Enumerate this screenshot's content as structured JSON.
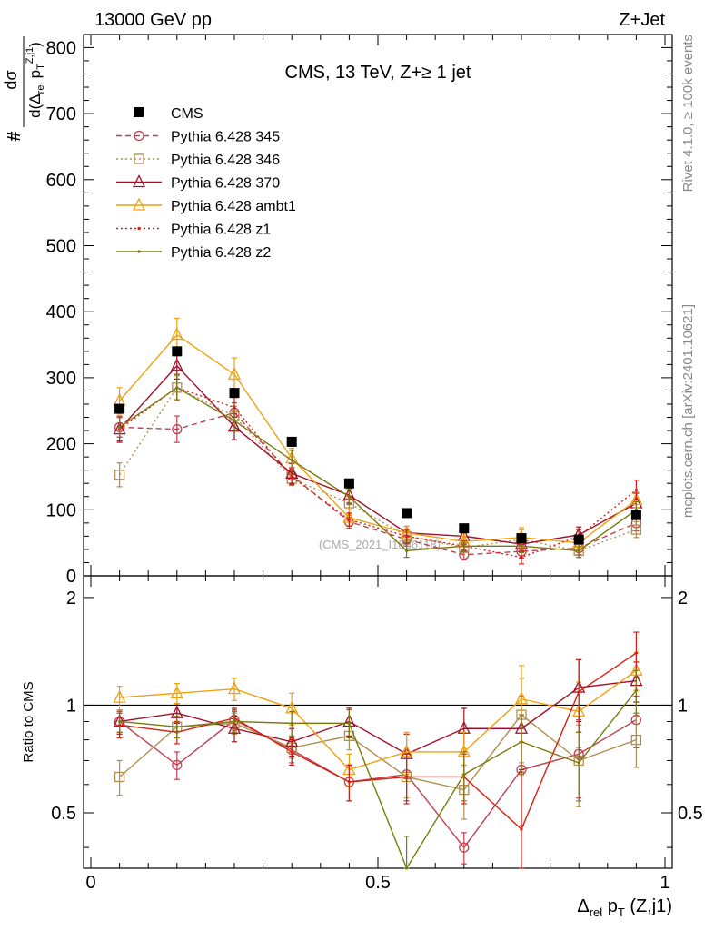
{
  "header": {
    "energy_label": "13000 GeV pp",
    "process_label": "Z+Jet",
    "title": "CMS, 13 TeV, Z+≥ 1 jet",
    "watermark": "(CMS_2021_I1866118)"
  },
  "side_labels": {
    "rivet": "Rivet 4.1.0, ≥ 100k events",
    "mcplots": "mcplots.cern.ch [arXiv:2401.10621]"
  },
  "colors": {
    "data": "#000000",
    "p345": "#c04050",
    "p346": "#b09050",
    "p370": "#a01028",
    "ambt1": "#f0a010",
    "z1": "#d82010",
    "z2": "#7a7a10"
  },
  "chart_data": [
    {
      "type": "line",
      "name": "main",
      "title": "CMS, 13 TeV, Z+≥ 1 jet",
      "xlabel": "Δrel pT (Z,j1)",
      "ylabel": "# dσ / d(Δrel pT Z,j1)",
      "xlim": [
        0,
        1
      ],
      "ylim": [
        0,
        820
      ],
      "yticks": [
        "0",
        "100",
        "200",
        "300",
        "400",
        "500",
        "600",
        "700",
        "800"
      ],
      "ytick_values": [
        0,
        100,
        200,
        300,
        400,
        500,
        600,
        700,
        800
      ],
      "x": [
        0.05,
        0.15,
        0.25,
        0.35,
        0.45,
        0.55,
        0.65,
        0.75,
        0.85,
        0.95
      ],
      "data": {
        "name": "CMS",
        "values": [
          253,
          340,
          277,
          203,
          140,
          95,
          72,
          57,
          55,
          92
        ]
      },
      "series": [
        {
          "key": "p345",
          "name": "Pythia 6.428 345",
          "marker": "circle",
          "dash": "6,4",
          "values": [
            225,
            222,
            247,
            152,
            82,
            55,
            32,
            37,
            42,
            80
          ],
          "err": [
            15,
            20,
            15,
            12,
            10,
            10,
            8,
            10,
            10,
            12
          ]
        },
        {
          "key": "p346",
          "name": "Pythia 6.428 346",
          "marker": "square",
          "dash": "2,3",
          "values": [
            153,
            285,
            242,
            147,
            110,
            60,
            43,
            55,
            38,
            70
          ],
          "err": [
            18,
            18,
            15,
            10,
            10,
            8,
            8,
            15,
            10,
            12
          ]
        },
        {
          "key": "p370",
          "name": "Pythia 6.428 370",
          "marker": "triangle",
          "dash": "",
          "values": [
            222,
            318,
            226,
            155,
            122,
            65,
            60,
            48,
            62,
            110
          ],
          "err": [
            18,
            20,
            20,
            15,
            12,
            10,
            12,
            12,
            12,
            15
          ]
        },
        {
          "key": "ambt1",
          "name": "Pythia 6.428 ambt1",
          "marker": "triangle",
          "dash": "",
          "values": [
            265,
            365,
            305,
            178,
            88,
            65,
            52,
            58,
            50,
            115
          ],
          "err": [
            20,
            25,
            25,
            15,
            12,
            10,
            8,
            15,
            10,
            12
          ]
        },
        {
          "key": "z1",
          "name": "Pythia 6.428 z1",
          "marker": "dot",
          "dash": "2,3",
          "values": [
            222,
            285,
            255,
            150,
            85,
            60,
            45,
            28,
            60,
            130
          ],
          "err": [
            20,
            20,
            15,
            12,
            10,
            10,
            8,
            10,
            10,
            15
          ]
        },
        {
          "key": "z2",
          "name": "Pythia 6.428 z2",
          "marker": "dot",
          "dash": "",
          "values": [
            225,
            285,
            235,
            175,
            120,
            38,
            45,
            45,
            38,
            100
          ],
          "err": [
            15,
            20,
            15,
            15,
            12,
            10,
            8,
            10,
            10,
            12
          ]
        }
      ]
    },
    {
      "type": "line",
      "name": "ratio",
      "xlabel": "Δrel pT (Z,j1)",
      "ylabel": "Ratio to CMS",
      "xlim": [
        0,
        1
      ],
      "ylim": [
        0.35,
        2.3
      ],
      "scale": "log",
      "yticks": [
        "0.5",
        "1",
        "2"
      ],
      "ytick_values": [
        0.5,
        1,
        2
      ],
      "xticks": [
        "0",
        "0.5",
        "1"
      ],
      "xtick_values": [
        0,
        0.5,
        1
      ],
      "x": [
        0.05,
        0.15,
        0.25,
        0.35,
        0.45,
        0.55,
        0.65,
        0.75,
        0.85,
        0.95
      ],
      "series": [
        {
          "key": "p345",
          "values": [
            0.9,
            0.68,
            0.91,
            0.75,
            0.61,
            0.64,
            0.4,
            0.66,
            0.73,
            0.91
          ],
          "err": [
            0.06,
            0.06,
            0.06,
            0.06,
            0.07,
            0.1,
            0.04,
            0.2,
            0.18,
            0.15
          ]
        },
        {
          "key": "p346",
          "values": [
            0.63,
            0.87,
            0.89,
            0.76,
            0.82,
            0.63,
            0.58,
            0.94,
            0.7,
            0.8
          ],
          "err": [
            0.07,
            0.06,
            0.06,
            0.05,
            0.07,
            0.08,
            0.1,
            0.25,
            0.18,
            0.13
          ]
        },
        {
          "key": "p370",
          "values": [
            0.9,
            0.95,
            0.86,
            0.79,
            0.9,
            0.73,
            0.86,
            0.86,
            1.12,
            1.17
          ],
          "err": [
            0.07,
            0.06,
            0.07,
            0.07,
            0.08,
            0.1,
            0.12,
            0.2,
            0.22,
            0.15
          ]
        },
        {
          "key": "ambt1",
          "values": [
            1.05,
            1.08,
            1.11,
            0.98,
            0.66,
            0.74,
            0.74,
            1.04,
            0.96,
            1.25
          ],
          "err": [
            0.08,
            0.07,
            0.08,
            0.1,
            0.07,
            0.1,
            0.1,
            0.25,
            0.2,
            0.15
          ]
        },
        {
          "key": "z1",
          "values": [
            0.88,
            0.84,
            0.92,
            0.74,
            0.61,
            0.63,
            0.63,
            0.45,
            1.09,
            1.4
          ],
          "err": [
            0.07,
            0.06,
            0.06,
            0.06,
            0.07,
            0.1,
            0.1,
            0.2,
            0.25,
            0.2
          ]
        },
        {
          "key": "z2",
          "values": [
            0.9,
            0.87,
            0.9,
            0.89,
            0.89,
            0.35,
            0.64,
            0.79,
            0.69,
            1.1
          ],
          "err": [
            0.06,
            0.06,
            0.06,
            0.07,
            0.08,
            0.08,
            0.1,
            0.15,
            0.15,
            0.15
          ]
        }
      ]
    }
  ]
}
